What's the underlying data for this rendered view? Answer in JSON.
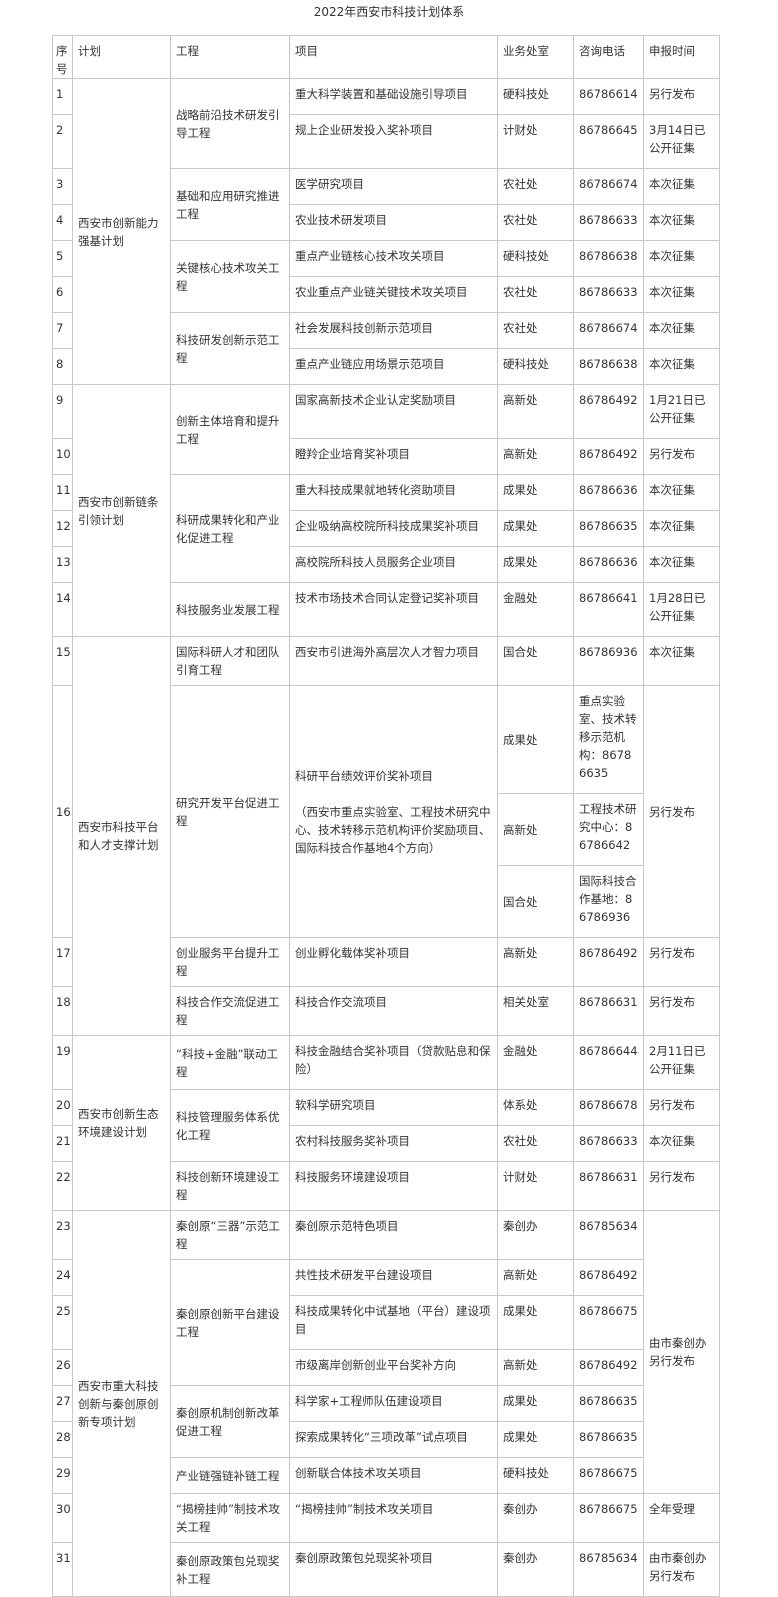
{
  "title": "2022年西安市科技计划体系",
  "headers": [
    "序号",
    "计划",
    "工程",
    "项目",
    "业务处室",
    "咨询电话",
    "申报时间"
  ],
  "plans": [
    {
      "name": "西安市创新能力强基计划",
      "engineering": [
        {
          "name": "战略前沿技术研发引导工程",
          "items": [
            {
              "no": "1",
              "name": "重大科学装置和基础设施引导项目",
              "depts": [
                {
                  "dept": "硬科技处",
                  "phone": "86786614"
                }
              ],
              "time": "另行发布"
            },
            {
              "no": "2",
              "name": "规上企业研发投入奖补项目",
              "depts": [
                {
                  "dept": "计财处",
                  "phone": "86786645"
                }
              ],
              "time": "3月14日已公开征集"
            }
          ]
        },
        {
          "name": "基础和应用研究推进工程",
          "items": [
            {
              "no": "3",
              "name": "医学研究项目",
              "depts": [
                {
                  "dept": "农社处",
                  "phone": "86786674"
                }
              ],
              "time": "本次征集"
            },
            {
              "no": "4",
              "name": "农业技术研发项目",
              "depts": [
                {
                  "dept": "农社处",
                  "phone": "86786633"
                }
              ],
              "time": "本次征集"
            }
          ]
        },
        {
          "name": "关键核心技术攻关工程",
          "items": [
            {
              "no": "5",
              "name": "重点产业链核心技术攻关项目",
              "depts": [
                {
                  "dept": "硬科技处",
                  "phone": "86786638"
                }
              ],
              "time": "本次征集"
            },
            {
              "no": "6",
              "name": "农业重点产业链关键技术攻关项目",
              "depts": [
                {
                  "dept": "农社处",
                  "phone": "86786633"
                }
              ],
              "time": "本次征集"
            }
          ]
        },
        {
          "name": "科技研发创新示范工程",
          "items": [
            {
              "no": "7",
              "name": "社会发展科技创新示范项目",
              "depts": [
                {
                  "dept": "农社处",
                  "phone": "86786674"
                }
              ],
              "time": "本次征集"
            },
            {
              "no": "8",
              "name": "重点产业链应用场景示范项目",
              "depts": [
                {
                  "dept": "硬科技处",
                  "phone": "86786638"
                }
              ],
              "time": "本次征集"
            }
          ]
        }
      ]
    },
    {
      "name": "西安市创新链条引领计划",
      "engineering": [
        {
          "name": "创新主体培育和提升工程",
          "items": [
            {
              "no": "9",
              "name": "国家高新技术企业认定奖励项目",
              "depts": [
                {
                  "dept": "高新处",
                  "phone": "86786492"
                }
              ],
              "time": "1月21日已公开征集"
            },
            {
              "no": "10",
              "name": "瞪羚企业培育奖补项目",
              "depts": [
                {
                  "dept": "高新处",
                  "phone": "86786492"
                }
              ],
              "time": "另行发布"
            }
          ]
        },
        {
          "name": "科研成果转化和产业化促进工程",
          "items": [
            {
              "no": "11",
              "name": "重大科技成果就地转化资助项目",
              "depts": [
                {
                  "dept": "成果处",
                  "phone": "86786636"
                }
              ],
              "time": "本次征集"
            },
            {
              "no": "12",
              "name": "企业吸纳高校院所科技成果奖补项目",
              "depts": [
                {
                  "dept": "成果处",
                  "phone": "86786635"
                }
              ],
              "time": "本次征集"
            },
            {
              "no": "13",
              "name": "高校院所科技人员服务企业项目",
              "depts": [
                {
                  "dept": "成果处",
                  "phone": "86786636"
                }
              ],
              "time": "本次征集"
            }
          ]
        },
        {
          "name": "科技服务业发展工程",
          "items": [
            {
              "no": "14",
              "name": "技术市场技术合同认定登记奖补项目",
              "depts": [
                {
                  "dept": "金融处",
                  "phone": "86786641"
                }
              ],
              "time": "1月28日已公开征集"
            }
          ]
        }
      ]
    },
    {
      "name": "西安市科技平台和人才支撑计划",
      "engineering": [
        {
          "name": "国际科研人才和团队引育工程",
          "items": [
            {
              "no": "15",
              "name": "西安市引进海外高层次人才智力项目",
              "depts": [
                {
                  "dept": "国合处",
                  "phone": "86786936"
                }
              ],
              "time": "本次征集"
            }
          ]
        },
        {
          "name": "研究开发平台促进工程",
          "items": [
            {
              "no": "16",
              "name": "科研平台绩效评价奖补项目",
              "note": "（西安市重点实验室、工程技术研究中心、技术转移示范机构评价奖励项目、国际科技合作基地4个方向）",
              "depts": [
                {
                  "dept": "成果处",
                  "phone": "重点实验室、技术转移示范机构：86786635"
                },
                {
                  "dept": "高新处",
                  "phone": "工程技术研究中心：86786642"
                },
                {
                  "dept": "国合处",
                  "phone": "国际科技合作基地：86786936"
                }
              ],
              "time": "另行发布"
            }
          ]
        },
        {
          "name": "创业服务平台提升工程",
          "items": [
            {
              "no": "17",
              "name": "创业孵化载体奖补项目",
              "depts": [
                {
                  "dept": "高新处",
                  "phone": "86786492"
                }
              ],
              "time": "另行发布"
            }
          ]
        },
        {
          "name": "科技合作交流促进工程",
          "items": [
            {
              "no": "18",
              "name": "科技合作交流项目",
              "depts": [
                {
                  "dept": "相关处室",
                  "phone": "86786631"
                }
              ],
              "time": "另行发布"
            }
          ]
        }
      ]
    },
    {
      "name": "西安市创新生态环境建设计划",
      "engineering": [
        {
          "name": "“科技+金融”联动工程",
          "items": [
            {
              "no": "19",
              "name": "科技金融结合奖补项目（贷款贴息和保险）",
              "depts": [
                {
                  "dept": "金融处",
                  "phone": "86786644"
                }
              ],
              "time": "2月11日已公开征集"
            }
          ]
        },
        {
          "name": "科技管理服务体系优化工程",
          "items": [
            {
              "no": "20",
              "name": "软科学研究项目",
              "depts": [
                {
                  "dept": "体系处",
                  "phone": "86786678"
                }
              ],
              "time": "另行发布"
            },
            {
              "no": "21",
              "name": "农村科技服务奖补项目",
              "depts": [
                {
                  "dept": "农社处",
                  "phone": "86786633"
                }
              ],
              "time": "本次征集"
            }
          ]
        },
        {
          "name": "科技创新环境建设工程",
          "items": [
            {
              "no": "22",
              "name": "科技服务环境建设项目",
              "depts": [
                {
                  "dept": "计财处",
                  "phone": "86786631"
                }
              ],
              "time": "另行发布"
            }
          ]
        }
      ]
    },
    {
      "name": "西安市重大科技创新与秦创原创新专项计划",
      "engineering": [
        {
          "name": "秦创原“三器”示范工程",
          "items": [
            {
              "no": "23",
              "name": "秦创原示范特色项目",
              "depts": [
                {
                  "dept": "秦创办",
                  "phone": "86785634"
                }
              ],
              "time": "由市秦创办另行发布"
            }
          ]
        },
        {
          "name": "秦创原创新平台建设工程",
          "items": [
            {
              "no": "24",
              "name": "共性技术研发平台建设项目",
              "depts": [
                {
                  "dept": "高新处",
                  "phone": "86786492"
                }
              ]
            },
            {
              "no": "25",
              "name": "科技成果转化中试基地（平台）建设项目",
              "depts": [
                {
                  "dept": "成果处",
                  "phone": "86786675"
                }
              ]
            },
            {
              "no": "26",
              "name": "市级离岸创新创业平台奖补方向",
              "depts": [
                {
                  "dept": "高新处",
                  "phone": "86786492"
                }
              ]
            }
          ]
        },
        {
          "name": "秦创原机制创新改革促进工程",
          "items": [
            {
              "no": "27",
              "name": "科学家+工程师队伍建设项目",
              "depts": [
                {
                  "dept": "成果处",
                  "phone": "86786635"
                }
              ]
            },
            {
              "no": "28",
              "name": "探索成果转化“三项改革”试点项目",
              "depts": [
                {
                  "dept": "成果处",
                  "phone": "86786635"
                }
              ]
            }
          ]
        },
        {
          "name": "产业链强链补链工程",
          "items": [
            {
              "no": "29",
              "name": "创新联合体技术攻关项目",
              "depts": [
                {
                  "dept": "硬科技处",
                  "phone": "86786675"
                }
              ]
            }
          ]
        },
        {
          "name": "“揭榜挂帅”制技术攻关工程",
          "items": [
            {
              "no": "30",
              "name": "“揭榜挂帅”制技术攻关项目",
              "depts": [
                {
                  "dept": "秦创办",
                  "phone": "86786675"
                }
              ],
              "time": "全年受理"
            }
          ]
        },
        {
          "name": "秦创原政策包兑现奖补工程",
          "items": [
            {
              "no": "31",
              "name": "秦创原政策包兑现奖补项目",
              "depts": [
                {
                  "dept": "秦创办",
                  "phone": "86785634"
                }
              ],
              "time": "由市秦创办另行发布"
            }
          ]
        }
      ]
    }
  ]
}
